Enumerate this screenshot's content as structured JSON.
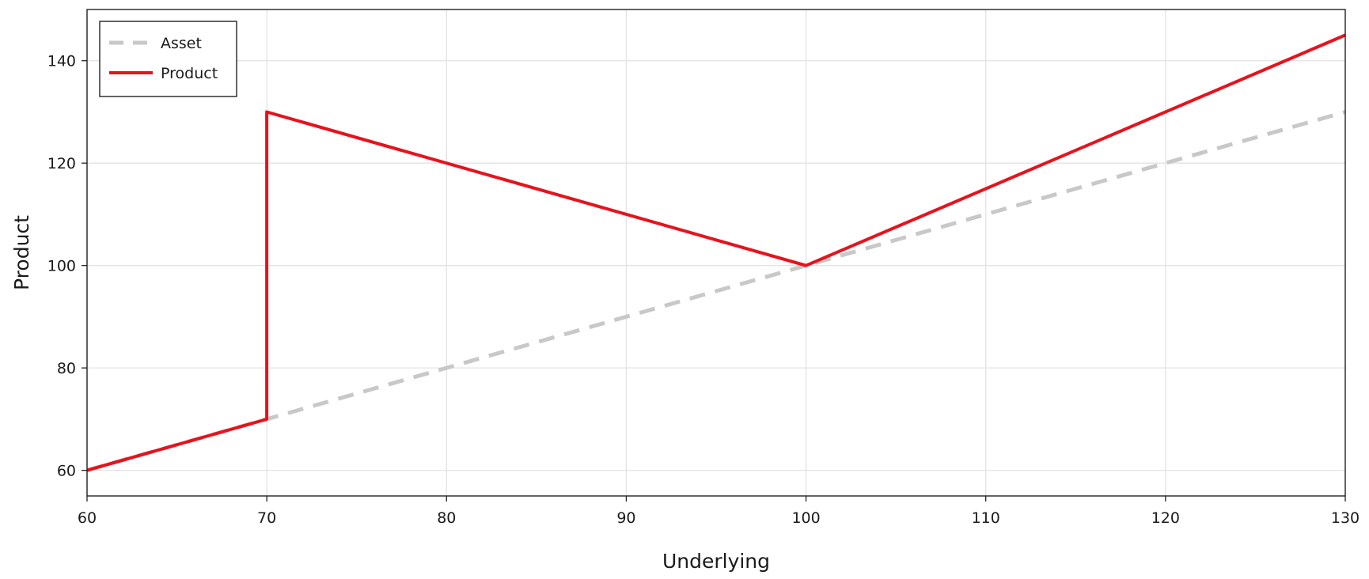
{
  "chart_data": {
    "type": "line",
    "title": "",
    "xlabel": "Underlying",
    "ylabel": "Product",
    "xlim": [
      60,
      130
    ],
    "ylim": [
      55,
      150
    ],
    "x_ticks": [
      60,
      70,
      80,
      90,
      100,
      110,
      120,
      130
    ],
    "y_ticks": [
      60,
      80,
      100,
      120,
      140
    ],
    "grid": true,
    "legend_position": "top-left",
    "series": [
      {
        "name": "Asset",
        "style": "dashed",
        "color": "#c8c8c8",
        "x": [
          60,
          130
        ],
        "y": [
          60,
          130
        ]
      },
      {
        "name": "Product",
        "style": "solid",
        "color": "#e8121c",
        "x": [
          60,
          70,
          70,
          100,
          130
        ],
        "y": [
          60,
          70,
          130,
          100,
          145
        ]
      }
    ]
  }
}
